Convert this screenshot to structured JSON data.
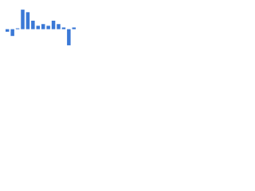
{
  "chart_data": {
    "type": "bar",
    "categories": [
      null,
      null,
      null,
      null,
      null,
      null,
      null,
      null,
      null,
      null,
      null,
      null,
      null,
      null
    ],
    "values": [
      -3,
      -8,
      1,
      23,
      20,
      10,
      4,
      6,
      4,
      10,
      6,
      2,
      -19,
      2
    ],
    "color": "#3a78d6",
    "ylim": [
      -20,
      25
    ]
  }
}
